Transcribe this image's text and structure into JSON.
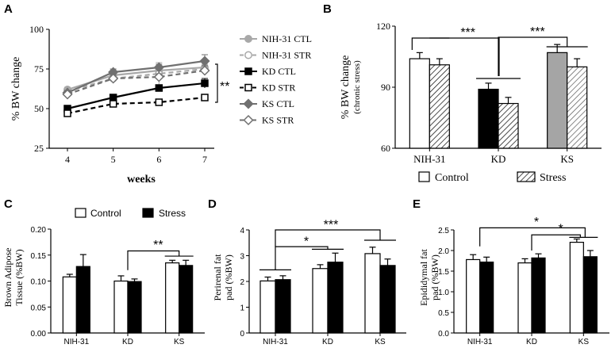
{
  "chart_data": [
    {
      "id": "A",
      "panel_label": "A",
      "type": "line",
      "xlabel": "weeks",
      "ylabel": "% BW change",
      "x": [
        4,
        5,
        6,
        7
      ],
      "x_ticks": [
        "4",
        "5",
        "6",
        "7"
      ],
      "ylim": [
        25,
        100
      ],
      "y_ticks": [
        "25",
        "50",
        "75",
        "100"
      ],
      "series": [
        {
          "name": "NIH-31 CTL",
          "values": [
            62,
            71,
            74,
            76
          ],
          "errors": [
            1.5,
            2,
            2,
            3
          ],
          "color": "#a8a8a8",
          "marker": "circle-filled",
          "dashed": false
        },
        {
          "name": "NIH-31 STR",
          "values": [
            61,
            69,
            72,
            75
          ],
          "errors": [
            1.5,
            3,
            7,
            3
          ],
          "color": "#a8a8a8",
          "marker": "circle-open",
          "dashed": true
        },
        {
          "name": "KD CTL",
          "values": [
            50,
            57,
            63,
            66
          ],
          "errors": [
            1.5,
            2,
            2,
            3
          ],
          "color": "#000000",
          "marker": "square-filled",
          "dashed": false
        },
        {
          "name": "KD STR",
          "values": [
            47,
            53,
            54,
            57
          ],
          "errors": [
            1.5,
            2,
            1.5,
            2
          ],
          "color": "#000000",
          "marker": "square-open",
          "dashed": true
        },
        {
          "name": "KS CTL",
          "values": [
            60,
            73,
            76,
            80
          ],
          "errors": [
            1.5,
            2,
            2,
            4
          ],
          "color": "#707070",
          "marker": "diamond-filled",
          "dashed": false
        },
        {
          "name": "KS STR",
          "values": [
            59,
            69,
            70,
            74
          ],
          "errors": [
            1.5,
            2,
            2,
            3
          ],
          "color": "#707070",
          "marker": "diamond-open",
          "dashed": true
        }
      ],
      "annotations": [
        {
          "text": "**"
        }
      ]
    },
    {
      "id": "B",
      "panel_label": "B",
      "type": "bar",
      "ylabel": "% BW change",
      "ylabel_sub": "(chronic stress)",
      "categories": [
        "NIH-31",
        "KD",
        "KS"
      ],
      "ylim": [
        60,
        120
      ],
      "y_ticks": [
        "60",
        "90",
        "120"
      ],
      "series": [
        {
          "name": "Control",
          "values": [
            104,
            89,
            107
          ],
          "errors": [
            3,
            3,
            4
          ]
        },
        {
          "name": "Stress",
          "values": [
            101,
            82,
            100
          ],
          "errors": [
            3,
            3,
            4
          ]
        }
      ],
      "annotations": [
        {
          "text": "***"
        },
        {
          "text": "***"
        }
      ]
    },
    {
      "id": "C",
      "panel_label": "C",
      "type": "bar",
      "ylabel": "Brown Adipose",
      "ylabel_sub": "Tissue (%BW)",
      "categories": [
        "NIH-31",
        "KD",
        "KS"
      ],
      "ylim": [
        0,
        0.2
      ],
      "y_ticks": [
        "0.00",
        "0.05",
        "0.10",
        "0.15",
        "0.20"
      ],
      "series": [
        {
          "name": "Control",
          "values": [
            0.108,
            0.1,
            0.135
          ],
          "errors": [
            0.005,
            0.01,
            0.005
          ]
        },
        {
          "name": "Stress",
          "values": [
            0.128,
            0.099,
            0.13
          ],
          "errors": [
            0.023,
            0.005,
            0.01
          ]
        }
      ],
      "annotations": [
        {
          "text": "**"
        }
      ]
    },
    {
      "id": "D",
      "panel_label": "D",
      "type": "bar",
      "ylabel": "Perirenal fat",
      "ylabel_sub": "pad (%BW)",
      "categories": [
        "NIH-31",
        "KD",
        "KS"
      ],
      "ylim": [
        0,
        4
      ],
      "y_ticks": [
        "0",
        "1",
        "2",
        "3",
        "4"
      ],
      "series": [
        {
          "name": "Control",
          "values": [
            2.02,
            2.5,
            3.08
          ],
          "errors": [
            0.15,
            0.15,
            0.25
          ]
        },
        {
          "name": "Stress",
          "values": [
            2.07,
            2.75,
            2.62
          ],
          "errors": [
            0.15,
            0.35,
            0.25
          ]
        }
      ],
      "annotations": [
        {
          "text": "*"
        },
        {
          "text": "***"
        }
      ]
    },
    {
      "id": "E",
      "panel_label": "E",
      "type": "bar",
      "ylabel": "Epididymal fat",
      "ylabel_sub": "pad (%BW)",
      "categories": [
        "NIH-31",
        "KD",
        "KS"
      ],
      "ylim": [
        0,
        2.5
      ],
      "y_ticks": [
        "0.0",
        "0.5",
        "1.0",
        "1.5",
        "2.0",
        "2.5"
      ],
      "series": [
        {
          "name": "Control",
          "values": [
            1.78,
            1.7,
            2.2
          ],
          "errors": [
            0.12,
            0.1,
            0.08
          ]
        },
        {
          "name": "Stress",
          "values": [
            1.72,
            1.82,
            1.85
          ],
          "errors": [
            0.12,
            0.1,
            0.15
          ]
        }
      ],
      "annotations": [
        {
          "text": "*"
        },
        {
          "text": "*"
        }
      ]
    }
  ],
  "legend_b": {
    "control": "Control",
    "stress": "Stress"
  },
  "legend_c": {
    "control": "Control",
    "stress": "Stress"
  },
  "colors": {
    "ks_bar": "#a5a5a5",
    "black": "#000000",
    "nih_line": "#a8a8a8",
    "ks_line": "#707070"
  }
}
